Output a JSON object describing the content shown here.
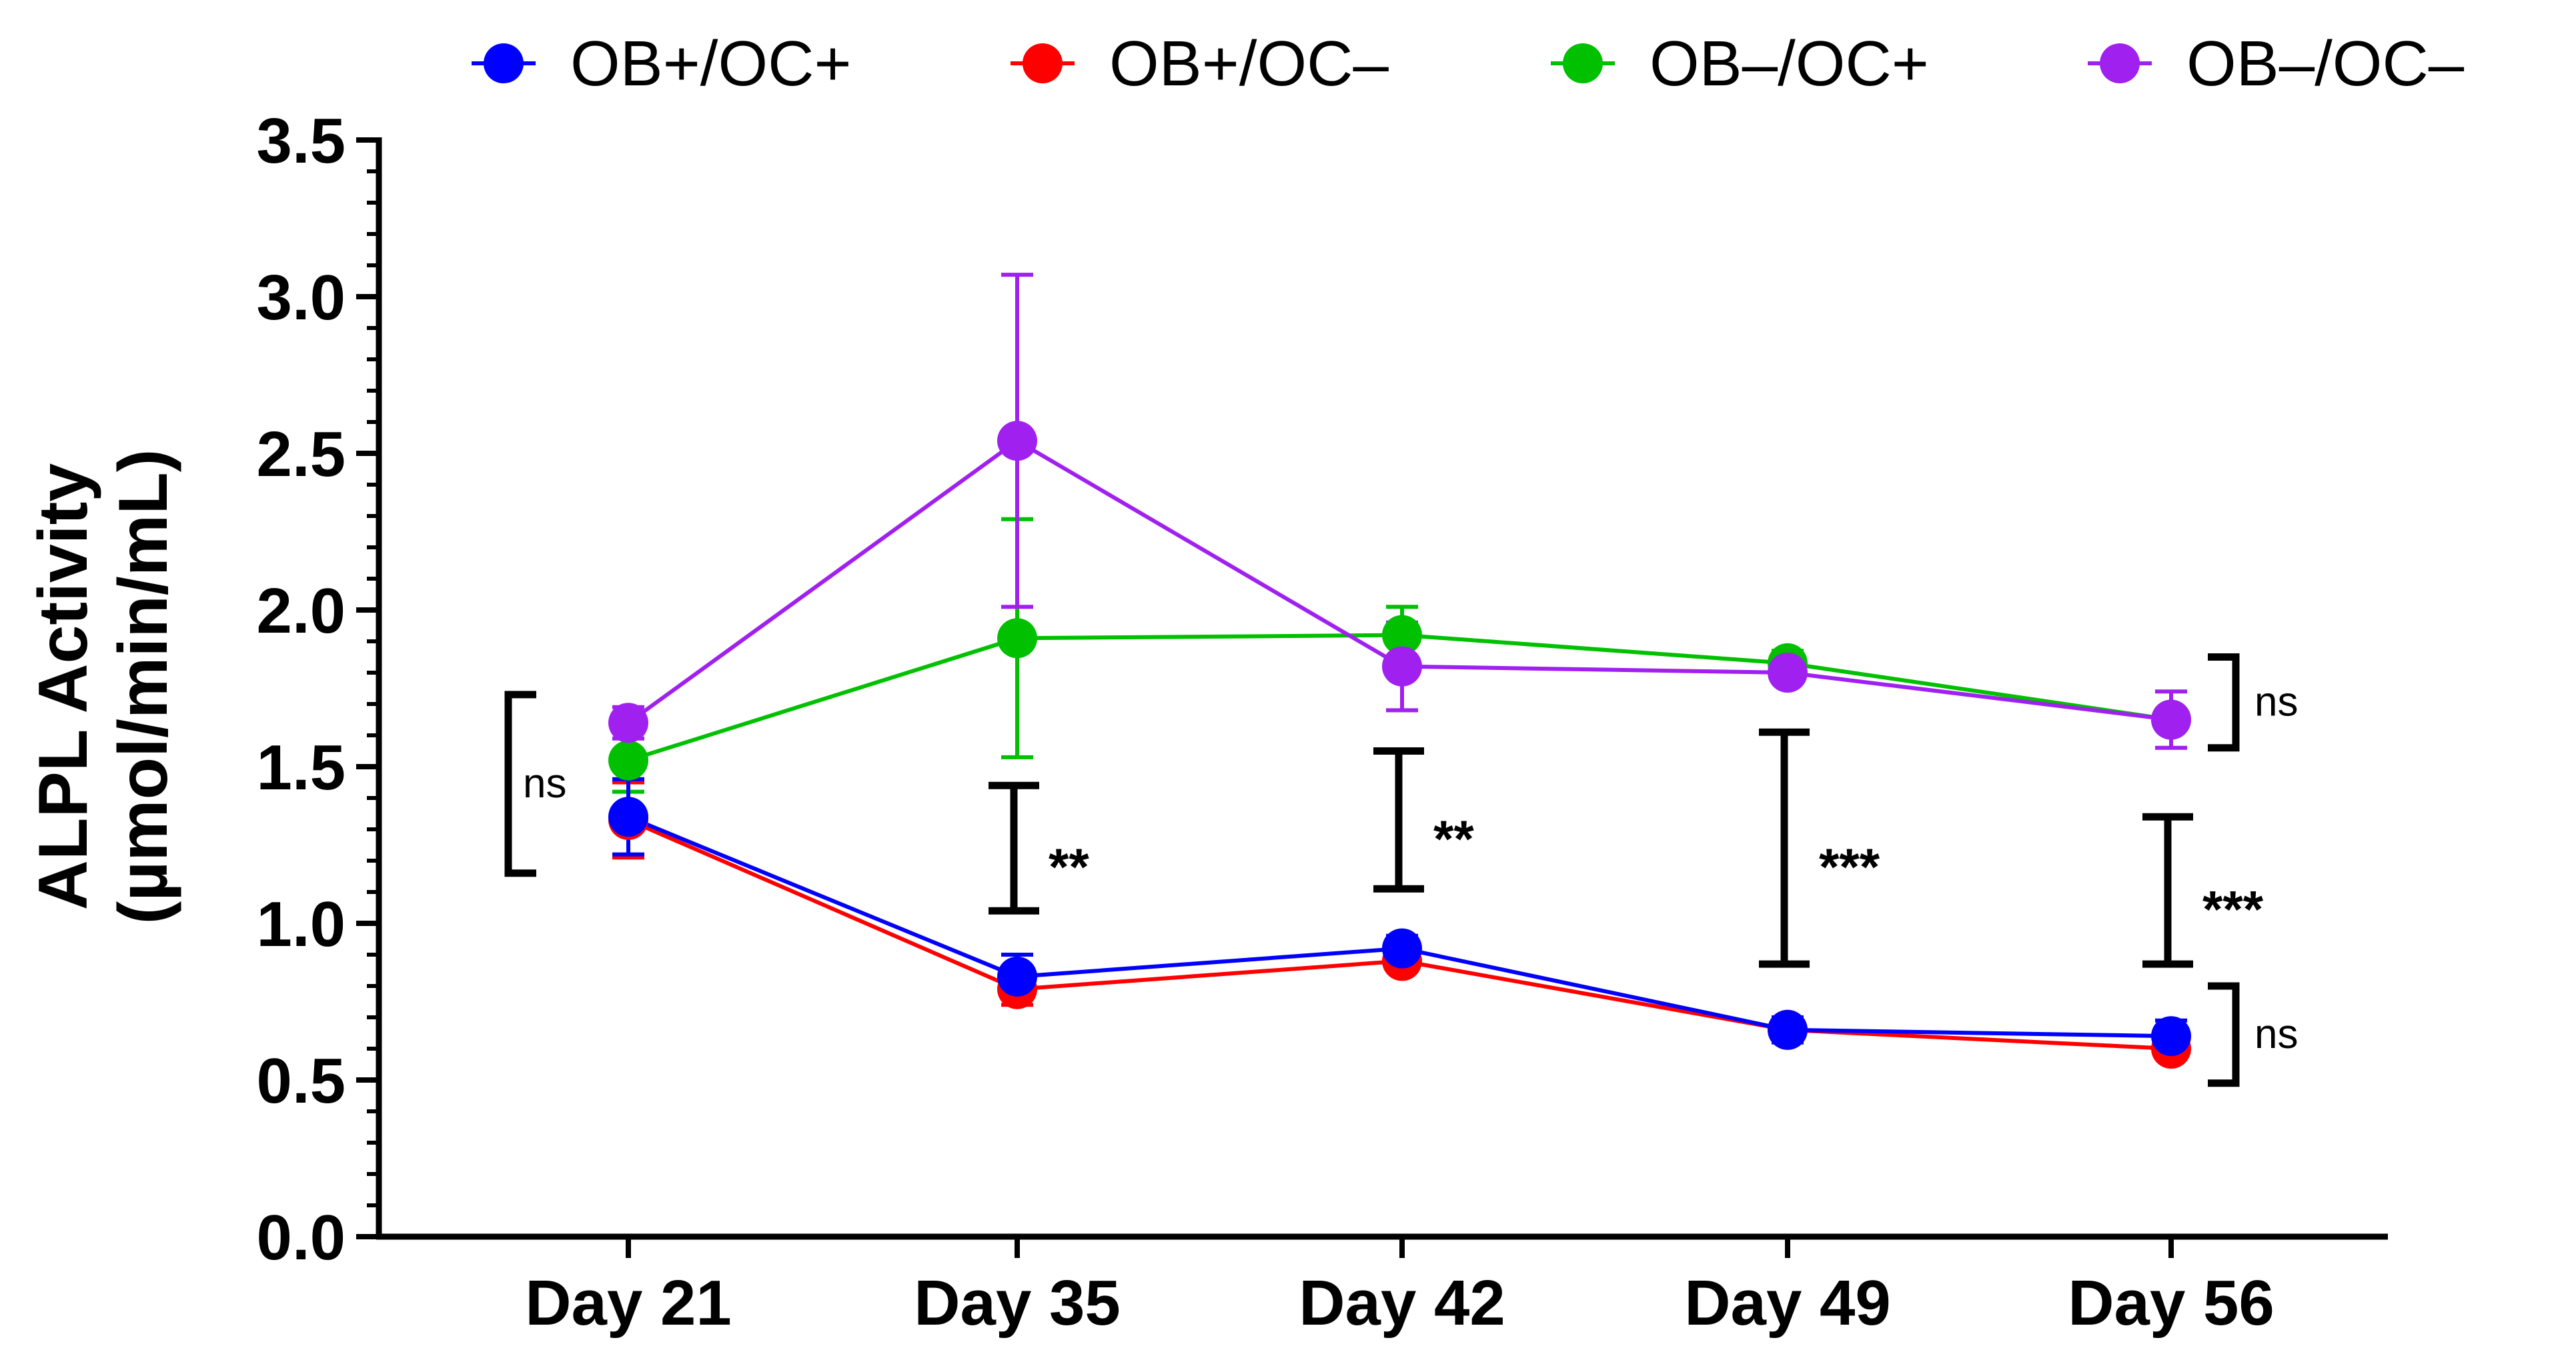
{
  "chart_data": {
    "type": "line",
    "title": "",
    "xlabel": "",
    "ylabel_lines": [
      "ALPL Activity",
      "(µmol/min/mL)"
    ],
    "categories": [
      "Day 21",
      "Day 35",
      "Day 42",
      "Day 49",
      "Day 56"
    ],
    "ylim": [
      0,
      3.5
    ],
    "yticks": [
      0.0,
      0.5,
      1.0,
      1.5,
      2.0,
      2.5,
      3.0,
      3.5
    ],
    "ytick_labels": [
      "0.0",
      "0.5",
      "1.0",
      "1.5",
      "2.0",
      "2.5",
      "3.0",
      "3.5"
    ],
    "grid": false,
    "legend_position": "top",
    "series": [
      {
        "name": "OB+/OC+",
        "color": "#0000ff",
        "values": [
          1.34,
          0.83,
          0.92,
          0.66,
          0.64
        ],
        "err": [
          0.12,
          0.07,
          0.04,
          0.04,
          0.05
        ]
      },
      {
        "name": "OB+/OC–",
        "color": "#ff0000",
        "values": [
          1.33,
          0.79,
          0.88,
          0.66,
          0.6
        ],
        "err": [
          0.12,
          0.05,
          0.03,
          0.03,
          0.03
        ]
      },
      {
        "name": "OB–/OC+",
        "color": "#00c000",
        "values": [
          1.52,
          1.91,
          1.92,
          1.83,
          1.65
        ],
        "err": [
          0.1,
          0.38,
          0.09,
          0.04,
          0.03
        ]
      },
      {
        "name": "OB–/OC–",
        "color": "#a020f0",
        "values": [
          1.64,
          2.54,
          1.82,
          1.8,
          1.65
        ],
        "err": [
          0.05,
          0.53,
          0.14,
          0.03,
          0.09
        ]
      }
    ],
    "annotations": [
      {
        "label": "ns",
        "category": "Day 21",
        "y_low": 1.16,
        "y_high": 1.73,
        "style": "bracket-left"
      },
      {
        "label": "**",
        "category": "Day 35",
        "y_low": 1.04,
        "y_high": 1.44,
        "style": "bar"
      },
      {
        "label": "**",
        "category": "Day 42",
        "y_low": 1.11,
        "y_high": 1.55,
        "style": "bar"
      },
      {
        "label": "***",
        "category": "Day 49",
        "y_low": 0.87,
        "y_high": 1.61,
        "style": "bar"
      },
      {
        "label": "***",
        "category": "Day 56",
        "y_low": 0.87,
        "y_high": 1.34,
        "style": "bar"
      },
      {
        "label": "ns",
        "category": "Day 56",
        "y_low": 1.56,
        "y_high": 1.85,
        "style": "bracket-right"
      },
      {
        "label": "ns",
        "category": "Day 56",
        "y_low": 0.49,
        "y_high": 0.8,
        "style": "bracket-right"
      }
    ]
  }
}
